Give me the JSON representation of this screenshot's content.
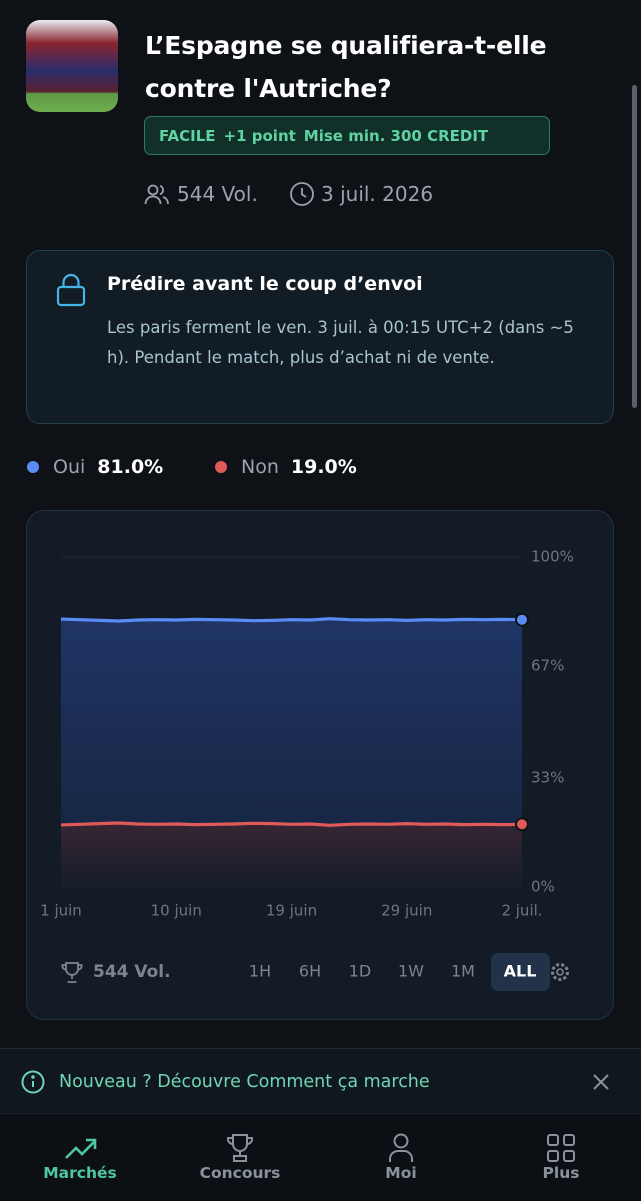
{
  "header": {
    "title": "L’Espagne se qualifiera-t-elle contre l'Autriche?",
    "level": "FACILE",
    "points": "+1 point",
    "min_bet": "Mise min. 300 CREDIT",
    "volume": "544 Vol.",
    "date": "3 juil. 2026"
  },
  "notice": {
    "title": "Prédire avant le coup d’envoi",
    "text": "Les paris ferment le ven. 3 juil. à 00:15 UTC+2 (dans ~5 h). Pendant le match, plus d’achat ni de vente."
  },
  "chart_data": {
    "type": "line",
    "categories": [
      "1 juin",
      null,
      null,
      null,
      null,
      null,
      "10 juin",
      null,
      null,
      null,
      null,
      null,
      "19 juin",
      null,
      null,
      null,
      null,
      null,
      "29 juin",
      null,
      null,
      null,
      null,
      null,
      "2 juil."
    ],
    "series": [
      {
        "name": "Oui",
        "color": "#5b8cf5",
        "current_label": "81.0%",
        "values": [
          81.2,
          81.0,
          80.8,
          80.6,
          80.9,
          81.0,
          80.9,
          81.1,
          81.0,
          80.9,
          80.7,
          80.8,
          81.0,
          80.9,
          81.3,
          81.0,
          80.9,
          81.0,
          80.8,
          81.0,
          80.9,
          81.1,
          81.0,
          81.1,
          81.0
        ]
      },
      {
        "name": "Non",
        "color": "#e05a5a",
        "current_label": "19.0%",
        "values": [
          18.8,
          19.0,
          19.2,
          19.4,
          19.1,
          19.0,
          19.1,
          18.9,
          19.0,
          19.1,
          19.3,
          19.2,
          19.0,
          19.1,
          18.7,
          19.0,
          19.1,
          19.0,
          19.2,
          19.0,
          19.1,
          18.9,
          19.0,
          18.9,
          19.0
        ]
      }
    ],
    "ylim": [
      0,
      100
    ],
    "yticks": [
      {
        "value": 0,
        "label": "0%"
      },
      {
        "value": 33,
        "label": "33%"
      },
      {
        "value": 67,
        "label": "67%"
      },
      {
        "value": 100,
        "label": "100%"
      }
    ],
    "grid": true
  },
  "ranges": [
    "1H",
    "6H",
    "1D",
    "1W",
    "1M",
    "ALL"
  ],
  "active_range": 5,
  "banner": "Nouveau ? Découvre Comment ça marche",
  "nav": [
    "Marchés",
    "Concours",
    "Moi",
    "Plus"
  ],
  "active_nav": 0
}
